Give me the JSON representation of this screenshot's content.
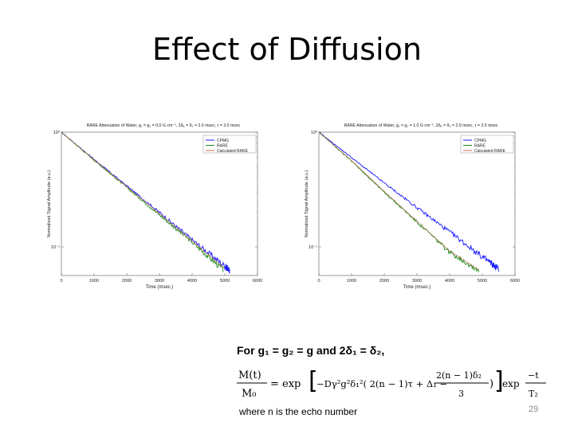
{
  "slide": {
    "title": "Effect of Diffusion",
    "caption": "For g₁ = g₂ = g and 2δ₁ = δ₂,",
    "footnote": "where n is the echo number",
    "page_number": "29"
  },
  "formula": {
    "lhs_num": "M(t)",
    "lhs_den": "M₀",
    "exp1": "= exp",
    "body": "−Dγ²g²δ₁²( 2(n − 1)τ + Δ₁ − ",
    "frac_num": "2(n − 1)δ₂",
    "frac_den": "3",
    "close": ")",
    "exp2": "exp",
    "exp_num": "−t",
    "exp_den": "T₂"
  },
  "chart_data": [
    {
      "type": "line",
      "title": "RARE Attenuation of Water, g₁ = g₂ = 0.0 G cm⁻¹, 2Δ₁ = δ₂ = 2.0 msec, τ = 3.0 msec",
      "xlabel": "Time (msec.)",
      "ylabel": "Normalized Signal Amplitude (a.u.)",
      "x_ticks": [
        "0",
        "1000",
        "2000",
        "3000",
        "4000",
        "5000",
        "6000"
      ],
      "y_ticks": [
        "10⁰",
        "10⁻¹"
      ],
      "xlim": [
        0,
        6000
      ],
      "log_y": true,
      "legend_position": "top-right",
      "series": [
        {
          "name": "CPMG",
          "color": "#1a1aff",
          "x": [
            0,
            1000,
            2000,
            3000,
            4000,
            5000,
            5150
          ],
          "y": [
            1.0,
            0.58,
            0.34,
            0.2,
            0.115,
            0.068,
            0.062
          ]
        },
        {
          "name": "RARE",
          "color": "#1a8a1a",
          "x": [
            0,
            1000,
            2000,
            3000,
            4000,
            4950
          ],
          "y": [
            1.0,
            0.57,
            0.33,
            0.19,
            0.11,
            0.063
          ]
        },
        {
          "name": "Calculated RARE",
          "color": "#c07050",
          "x": [
            0,
            1000,
            2000,
            3000,
            4000,
            5000
          ],
          "y": [
            1.0,
            0.575,
            0.335,
            0.195,
            0.112,
            0.065
          ]
        }
      ]
    },
    {
      "type": "line",
      "title": "RARE Attenuation of Water, g₁ = g₂ = 1.0 G cm⁻¹, 2Δ₁ = δ₂ = 2.0 msec, τ = 3.0 msec",
      "xlabel": "Time (msec.)",
      "ylabel": "Normalized Signal Amplitude (a.u.)",
      "x_ticks": [
        "0",
        "1000",
        "2000",
        "3000",
        "4000",
        "5000",
        "6000"
      ],
      "y_ticks": [
        "10⁰",
        "10⁻¹"
      ],
      "xlim": [
        0,
        6000
      ],
      "log_y": true,
      "legend_position": "top-right",
      "series": [
        {
          "name": "CPMG",
          "color": "#1a1aff",
          "x": [
            0,
            1000,
            2000,
            3000,
            4000,
            5000,
            5500
          ],
          "y": [
            1.0,
            0.6,
            0.36,
            0.22,
            0.135,
            0.082,
            0.064
          ]
        },
        {
          "name": "RARE",
          "color": "#1a8a1a",
          "x": [
            0,
            1000,
            2000,
            3000,
            4000,
            4900
          ],
          "y": [
            1.0,
            0.56,
            0.3,
            0.165,
            0.09,
            0.062
          ]
        },
        {
          "name": "Calculated RARE",
          "color": "#c07050",
          "x": [
            0,
            1000,
            2000,
            3000,
            4000,
            4900
          ],
          "y": [
            1.0,
            0.565,
            0.305,
            0.167,
            0.092,
            0.063
          ]
        }
      ]
    }
  ]
}
